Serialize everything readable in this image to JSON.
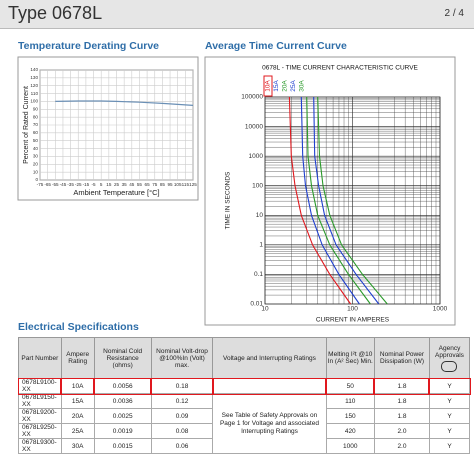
{
  "header": {
    "title": "Type 0678L",
    "page": "2 / 4"
  },
  "sections": {
    "derating": "Temperature Derating Curve",
    "time_current": "Average Time Current Curve",
    "specs": "Electrical Specifications"
  },
  "chart_data": [
    {
      "type": "line",
      "xlabel": "Ambient Temperature [°C]",
      "ylabel": "Percent of Rated Current",
      "xlim": [
        -75,
        125
      ],
      "xticks": [
        -75,
        -65,
        -55,
        -45,
        -35,
        -25,
        -15,
        -5,
        5,
        15,
        25,
        35,
        45,
        55,
        65,
        75,
        85,
        95,
        105,
        115,
        125
      ],
      "ylim": [
        0,
        140
      ],
      "yticks": [
        0,
        10,
        20,
        30,
        40,
        50,
        60,
        70,
        80,
        90,
        100,
        110,
        120,
        130,
        140
      ],
      "grid": true,
      "series": [
        {
          "color": "#6a8fb5",
          "x": [
            -55,
            -25,
            5,
            25,
            55,
            85,
            125
          ],
          "values": [
            100,
            100.5,
            100.5,
            100,
            99,
            97.5,
            95
          ]
        }
      ]
    },
    {
      "type": "line",
      "title": "0678L - TIME CURRENT  CHARACTERISTIC CURVE",
      "xlabel": "CURRENT IN AMPERES",
      "ylabel": "TIME IN SECONDS",
      "xscale": "log",
      "yscale": "log",
      "xlim": [
        10,
        1000
      ],
      "xticks": [
        10,
        100,
        1000
      ],
      "ylim": [
        0.01,
        100000
      ],
      "yticks": [
        0.01,
        0.1,
        1,
        10,
        100,
        1000,
        10000,
        100000
      ],
      "grid": true,
      "series": [
        {
          "name": "10A",
          "color": "#e0181e",
          "x": [
            19,
            20,
            22,
            26,
            35,
            55,
            95
          ],
          "values": [
            100000,
            1000,
            100,
            10,
            1,
            0.1,
            0.01
          ]
        },
        {
          "name": "15A",
          "color": "#1f3fcf",
          "x": [
            26,
            27,
            29,
            34,
            45,
            70,
            120
          ],
          "values": [
            100000,
            1000,
            100,
            10,
            1,
            0.1,
            0.01
          ]
        },
        {
          "name": "20A",
          "color": "#2a9a2a",
          "x": [
            30,
            31,
            34,
            40,
            55,
            90,
            160
          ],
          "values": [
            100000,
            1000,
            100,
            10,
            1,
            0.1,
            0.01
          ]
        },
        {
          "name": "25A",
          "color": "#1f3fcf",
          "x": [
            36,
            37,
            41,
            48,
            65,
            110,
            200
          ],
          "values": [
            100000,
            1000,
            100,
            10,
            1,
            0.1,
            0.01
          ]
        },
        {
          "name": "30A",
          "color": "#2a9a2a",
          "x": [
            40,
            42,
            46,
            55,
            75,
            130,
            250
          ],
          "values": [
            100000,
            1000,
            100,
            10,
            1,
            0.1,
            0.01
          ]
        }
      ]
    }
  ],
  "table": {
    "headers": [
      "Part Number",
      "Ampere Rating",
      "Nominal Cold Resistance (ohms)",
      "Nominal Volt-drop @100%In (Volt) max.",
      "Voltage and Interrupting Ratings",
      "Melting I²t @10 In (A² Sec) Min.",
      "Nominal Power Dissipation (W)",
      "Agency Approvals"
    ],
    "note": "See Table of Safety Approvals on Page 1 for Voltage and associated Interrupting Ratings",
    "rows": [
      [
        "0678L9100-XX",
        "10A",
        "0.0056",
        "0.18",
        "50",
        "1.8",
        "Y"
      ],
      [
        "0678L9150-XX",
        "15A",
        "0.0036",
        "0.12",
        "110",
        "1.8",
        "Y"
      ],
      [
        "0678L9200-XX",
        "20A",
        "0.0025",
        "0.09",
        "150",
        "1.8",
        "Y"
      ],
      [
        "0678L9250-XX",
        "25A",
        "0.0019",
        "0.08",
        "420",
        "2.0",
        "Y"
      ],
      [
        "0678L9300-XX",
        "30A",
        "0.0015",
        "0.06",
        "1000",
        "2.0",
        "Y"
      ]
    ]
  }
}
